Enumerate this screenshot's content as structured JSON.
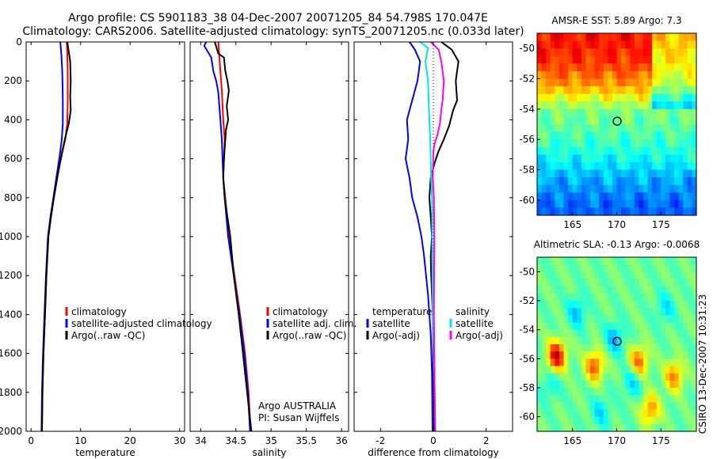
{
  "title": {
    "line1": "Argo profile: CS 5901183_38 04-Dec-2007 20071205_84 54.798S 170.047E",
    "line2": "Climatology: CARS2006. Satellite-adjusted climatology: synTS_20071205.nc (0.033d later)"
  },
  "side_label": "CSIRO 13-Dec-2007 10:31:23",
  "colors": {
    "climatology": "#ff0000",
    "satellite": "#0000ff",
    "argo": "#000000",
    "sal_satellite": "#00e5ee",
    "sal_argo": "#ff00ff"
  },
  "chart_data": [
    {
      "type": "line",
      "panel": "temperature",
      "xlabel": "temperature",
      "xlim": [
        -1,
        31
      ],
      "xticks": [
        "0",
        "10",
        "20",
        "30"
      ],
      "ylim": [
        2000,
        0
      ],
      "yticks": [
        "0",
        "200",
        "400",
        "600",
        "800",
        "1000",
        "1200",
        "1400",
        "1600",
        "1800",
        "2000"
      ],
      "legend": [
        "climatology",
        "satellite-adjusted climatology",
        "Argo(..raw -QC)"
      ],
      "series": [
        {
          "name": "climatology",
          "color": "#ff0000",
          "points": [
            [
              7.2,
              0
            ],
            [
              7.3,
              50
            ],
            [
              7.4,
              150
            ],
            [
              7.4,
              300
            ],
            [
              7.3,
              420
            ],
            [
              6.9,
              500
            ],
            [
              6.2,
              580
            ],
            [
              5.4,
              680
            ],
            [
              4.6,
              800
            ],
            [
              4.0,
              900
            ],
            [
              3.5,
              1000
            ],
            [
              3.1,
              1200
            ],
            [
              2.8,
              1400
            ],
            [
              2.5,
              1600
            ],
            [
              2.3,
              1800
            ],
            [
              2.2,
              2000
            ]
          ]
        },
        {
          "name": "satellite-adjusted climatology",
          "color": "#0000ff",
          "points": [
            [
              5.9,
              0
            ],
            [
              6.1,
              60
            ],
            [
              6.3,
              150
            ],
            [
              6.4,
              300
            ],
            [
              6.4,
              420
            ],
            [
              6.2,
              500
            ],
            [
              5.8,
              580
            ],
            [
              5.2,
              680
            ],
            [
              4.5,
              800
            ],
            [
              3.9,
              900
            ],
            [
              3.4,
              1000
            ],
            [
              3.0,
              1200
            ],
            [
              2.7,
              1400
            ],
            [
              2.4,
              1600
            ],
            [
              2.2,
              1800
            ],
            [
              2.1,
              2000
            ]
          ]
        },
        {
          "name": "Argo(..raw -QC)",
          "color": "#000000",
          "points": [
            [
              7.3,
              0
            ],
            [
              7.6,
              50
            ],
            [
              7.9,
              100
            ],
            [
              8.0,
              200
            ],
            [
              7.9,
              280
            ],
            [
              8.0,
              350
            ],
            [
              7.6,
              420
            ],
            [
              7.0,
              480
            ],
            [
              6.3,
              560
            ],
            [
              5.4,
              680
            ],
            [
              4.6,
              800
            ],
            [
              4.0,
              900
            ],
            [
              3.5,
              1000
            ],
            [
              3.1,
              1200
            ],
            [
              2.8,
              1400
            ],
            [
              2.5,
              1600
            ],
            [
              2.3,
              1800
            ],
            [
              2.2,
              2000
            ]
          ]
        }
      ]
    },
    {
      "type": "line",
      "panel": "salinity",
      "xlabel": "salinity",
      "xlim": [
        33.85,
        36.1
      ],
      "xticks": [
        "34",
        "34.5",
        "35",
        "35.5",
        "36"
      ],
      "ylim": [
        2000,
        0
      ],
      "legend": [
        "climatology",
        "satellite adj. clim.",
        "Argo(..raw -QC)"
      ],
      "annotation": [
        "Argo AUSTRALIA",
        "PI: Susan Wijffels"
      ],
      "series": [
        {
          "name": "climatology",
          "color": "#ff0000",
          "points": [
            [
              34.25,
              0
            ],
            [
              34.27,
              100
            ],
            [
              34.3,
              250
            ],
            [
              34.32,
              400
            ],
            [
              34.34,
              500
            ],
            [
              34.33,
              600
            ],
            [
              34.32,
              700
            ],
            [
              34.35,
              800
            ],
            [
              34.4,
              1000
            ],
            [
              34.48,
              1200
            ],
            [
              34.56,
              1400
            ],
            [
              34.63,
              1600
            ],
            [
              34.68,
              1800
            ],
            [
              34.71,
              2000
            ]
          ]
        },
        {
          "name": "satellite adj. clim.",
          "color": "#0000ff",
          "points": [
            [
              34.08,
              0
            ],
            [
              34.05,
              20
            ],
            [
              34.15,
              80
            ],
            [
              34.18,
              150
            ],
            [
              34.22,
              200
            ],
            [
              34.25,
              260
            ],
            [
              34.28,
              400
            ],
            [
              34.3,
              500
            ],
            [
              34.31,
              600
            ],
            [
              34.32,
              700
            ],
            [
              34.34,
              800
            ],
            [
              34.39,
              1000
            ],
            [
              34.47,
              1200
            ],
            [
              34.55,
              1400
            ],
            [
              34.62,
              1600
            ],
            [
              34.67,
              1800
            ],
            [
              34.7,
              2000
            ]
          ]
        },
        {
          "name": "Argo(..raw -QC)",
          "color": "#000000",
          "points": [
            [
              34.2,
              0
            ],
            [
              34.25,
              60
            ],
            [
              34.33,
              80
            ],
            [
              34.35,
              150
            ],
            [
              34.38,
              200
            ],
            [
              34.4,
              250
            ],
            [
              34.37,
              330
            ],
            [
              34.39,
              400
            ],
            [
              34.36,
              450
            ],
            [
              34.35,
              500
            ],
            [
              34.33,
              600
            ],
            [
              34.32,
              700
            ],
            [
              34.34,
              800
            ],
            [
              34.38,
              900
            ],
            [
              34.42,
              1000
            ],
            [
              34.47,
              1200
            ],
            [
              34.54,
              1400
            ],
            [
              34.6,
              1600
            ],
            [
              34.66,
              1800
            ],
            [
              34.72,
              2000
            ]
          ]
        }
      ]
    },
    {
      "type": "line",
      "panel": "difference",
      "xlabel": "difference from climatology",
      "xlim": [
        -3,
        3
      ],
      "xticks": [
        "-2",
        "0",
        "2"
      ],
      "ylim": [
        2000,
        0
      ],
      "legend_temperature": [
        "temperature",
        "satellite",
        "Argo(-adj)"
      ],
      "legend_salinity": [
        "salinity",
        "satellite",
        "Argo(-adj)"
      ],
      "series": [
        {
          "name": "temperature satellite",
          "color": "#0000ff",
          "points": [
            [
              -0.9,
              0
            ],
            [
              -0.7,
              40
            ],
            [
              -0.5,
              100
            ],
            [
              -0.6,
              200
            ],
            [
              -0.8,
              300
            ],
            [
              -0.9,
              350
            ],
            [
              -1.0,
              400
            ],
            [
              -0.95,
              500
            ],
            [
              -1.0,
              550
            ],
            [
              -1.05,
              600
            ],
            [
              -0.9,
              700
            ],
            [
              -0.8,
              800
            ],
            [
              -0.6,
              900
            ],
            [
              -0.45,
              1000
            ],
            [
              -0.35,
              1100
            ],
            [
              -0.2,
              1300
            ],
            [
              -0.1,
              1500
            ],
            [
              -0.05,
              1700
            ],
            [
              -0.03,
              2000
            ]
          ]
        },
        {
          "name": "temperature Argo(-adj)",
          "color": "#000000",
          "points": [
            [
              0.3,
              0
            ],
            [
              0.7,
              40
            ],
            [
              0.95,
              100
            ],
            [
              0.85,
              200
            ],
            [
              0.9,
              300
            ],
            [
              0.75,
              350
            ],
            [
              0.6,
              430
            ],
            [
              0.4,
              500
            ],
            [
              0.2,
              560
            ],
            [
              0.05,
              620
            ],
            [
              -0.1,
              700
            ],
            [
              -0.15,
              800
            ],
            [
              -0.1,
              900
            ],
            [
              -0.05,
              1000
            ],
            [
              -0.1,
              1100
            ],
            [
              -0.08,
              1200
            ],
            [
              -0.05,
              1300
            ],
            [
              -0.02,
              1400
            ],
            [
              0.0,
              1600
            ],
            [
              0.02,
              1800
            ],
            [
              0.03,
              2000
            ]
          ]
        },
        {
          "name": "salinity satellite",
          "color": "#00e5ee",
          "points": [
            [
              -0.5,
              0
            ],
            [
              -0.2,
              30
            ],
            [
              -0.3,
              100
            ],
            [
              -0.2,
              200
            ],
            [
              -0.18,
              300
            ],
            [
              -0.15,
              400
            ],
            [
              -0.12,
              500
            ],
            [
              -0.1,
              600
            ],
            [
              -0.08,
              700
            ],
            [
              -0.05,
              800
            ],
            [
              -0.04,
              1000
            ],
            [
              -0.03,
              1200
            ],
            [
              -0.02,
              1400
            ],
            [
              0.02,
              1600
            ],
            [
              0.05,
              1800
            ],
            [
              0.08,
              2000
            ]
          ]
        },
        {
          "name": "salinity Argo(-adj)",
          "color": "#ff00ff",
          "points": [
            [
              -0.1,
              0
            ],
            [
              0.2,
              40
            ],
            [
              0.3,
              100
            ],
            [
              0.4,
              200
            ],
            [
              0.35,
              300
            ],
            [
              0.3,
              350
            ],
            [
              0.25,
              420
            ],
            [
              0.15,
              480
            ],
            [
              0.05,
              520
            ],
            [
              0.0,
              560
            ],
            [
              -0.02,
              700
            ],
            [
              0.02,
              800
            ],
            [
              0.04,
              1000
            ],
            [
              0.03,
              1200
            ],
            [
              0.02,
              1400
            ],
            [
              0.04,
              1600
            ],
            [
              0.05,
              1800
            ],
            [
              0.07,
              2000
            ]
          ]
        }
      ]
    },
    {
      "type": "heatmap",
      "panel": "AMSR-E SST",
      "title": "AMSR-E SST: 5.89 Argo: 7.3",
      "xlim": [
        161,
        179
      ],
      "ylim": [
        -61,
        -49
      ],
      "xticks": [
        "165",
        "170",
        "175"
      ],
      "yticks": [
        "-50",
        "-52",
        "-54",
        "-56",
        "-58",
        "-60"
      ],
      "marker": {
        "lon": 170.05,
        "lat": -54.8
      },
      "colorscale": [
        "#00007f",
        "#0000ff",
        "#007fff",
        "#00ffff",
        "#7fff7f",
        "#ffff00",
        "#ff7f00",
        "#ff0000"
      ],
      "zones": [
        {
          "lat": -49.5,
          "level": 0.86
        },
        {
          "lat": -51.0,
          "level": 0.82
        },
        {
          "lat": -52.5,
          "level": 0.72
        },
        {
          "lat": -54.0,
          "level": 0.5
        },
        {
          "lat": -55.5,
          "level": 0.46
        },
        {
          "lat": -57.0,
          "level": 0.4
        },
        {
          "lat": -58.5,
          "level": 0.3
        },
        {
          "lat": -60.5,
          "level": 0.22
        }
      ]
    },
    {
      "type": "heatmap",
      "panel": "Altimetric SLA",
      "title": "Altimetric SLA: -0.13 Argo: -0.0068",
      "xlim": [
        161,
        179
      ],
      "ylim": [
        -61,
        -49
      ],
      "xticks": [
        "165",
        "170",
        "175"
      ],
      "yticks": [
        "-50",
        "-52",
        "-54",
        "-56",
        "-58",
        "-60"
      ],
      "marker": {
        "lon": 170.05,
        "lat": -54.8
      },
      "colorscale": [
        "#00007f",
        "#0000ff",
        "#007fff",
        "#00ffff",
        "#7fff7f",
        "#ffff00",
        "#ff7f00",
        "#ff0000"
      ],
      "base_level": 0.48,
      "blobs": [
        {
          "lon": 163.2,
          "lat": -55.8,
          "level": 0.92
        },
        {
          "lon": 167.5,
          "lat": -56.5,
          "level": 0.8
        },
        {
          "lon": 172.5,
          "lat": -56.2,
          "level": 0.78
        },
        {
          "lon": 176.5,
          "lat": -57.2,
          "level": 0.75
        },
        {
          "lon": 173.8,
          "lat": -59.5,
          "level": 0.74
        },
        {
          "lon": 165.5,
          "lat": -52.8,
          "level": 0.32
        },
        {
          "lon": 169.8,
          "lat": -54.6,
          "level": 0.3
        },
        {
          "lon": 171.8,
          "lat": -57.6,
          "level": 0.33
        },
        {
          "lon": 175.5,
          "lat": -52.5,
          "level": 0.36
        },
        {
          "lon": 168.2,
          "lat": -59.7,
          "level": 0.35
        },
        {
          "lon": 162.5,
          "lat": -57.8,
          "level": 0.38
        }
      ]
    }
  ]
}
